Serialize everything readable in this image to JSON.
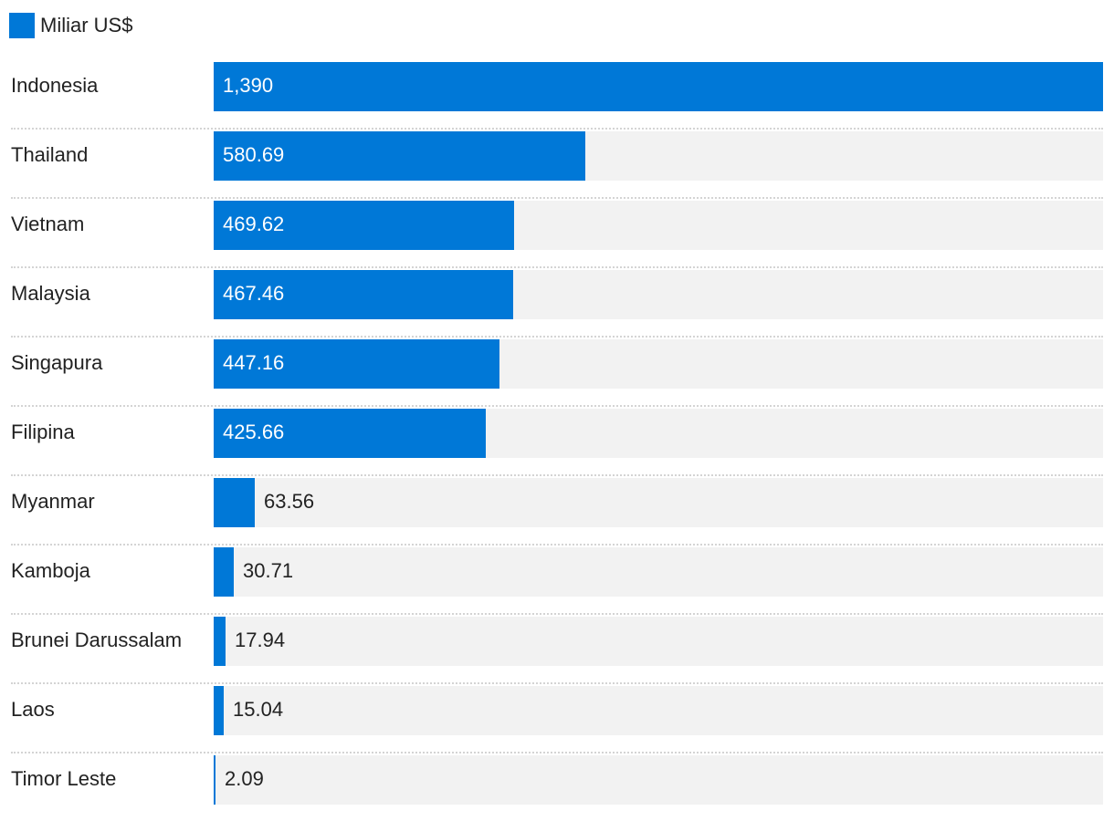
{
  "chart_data": {
    "type": "bar",
    "orientation": "horizontal",
    "title": "",
    "legend": {
      "position": "top-left",
      "entries": [
        {
          "name": "Miliar US$",
          "color": "#0078d7"
        }
      ]
    },
    "series": [
      {
        "name": "Miliar US$",
        "color": "#0078d7"
      }
    ],
    "xlim": [
      0,
      1390
    ],
    "grid": false,
    "items": [
      {
        "category": "Indonesia",
        "value": 1390,
        "label": "1,390"
      },
      {
        "category": "Thailand",
        "value": 580.69,
        "label": "580.69"
      },
      {
        "category": "Vietnam",
        "value": 469.62,
        "label": "469.62"
      },
      {
        "category": "Malaysia",
        "value": 467.46,
        "label": "467.46"
      },
      {
        "category": "Singapura",
        "value": 447.16,
        "label": "447.16"
      },
      {
        "category": "Filipina",
        "value": 425.66,
        "label": "425.66"
      },
      {
        "category": "Myanmar",
        "value": 63.56,
        "label": "63.56"
      },
      {
        "category": "Kamboja",
        "value": 30.71,
        "label": "30.71"
      },
      {
        "category": "Brunei Darussalam",
        "value": 17.94,
        "label": "17.94"
      },
      {
        "category": "Laos",
        "value": 15.04,
        "label": "15.04"
      },
      {
        "category": "Timor Leste",
        "value": 2.09,
        "label": "2.09"
      }
    ]
  }
}
